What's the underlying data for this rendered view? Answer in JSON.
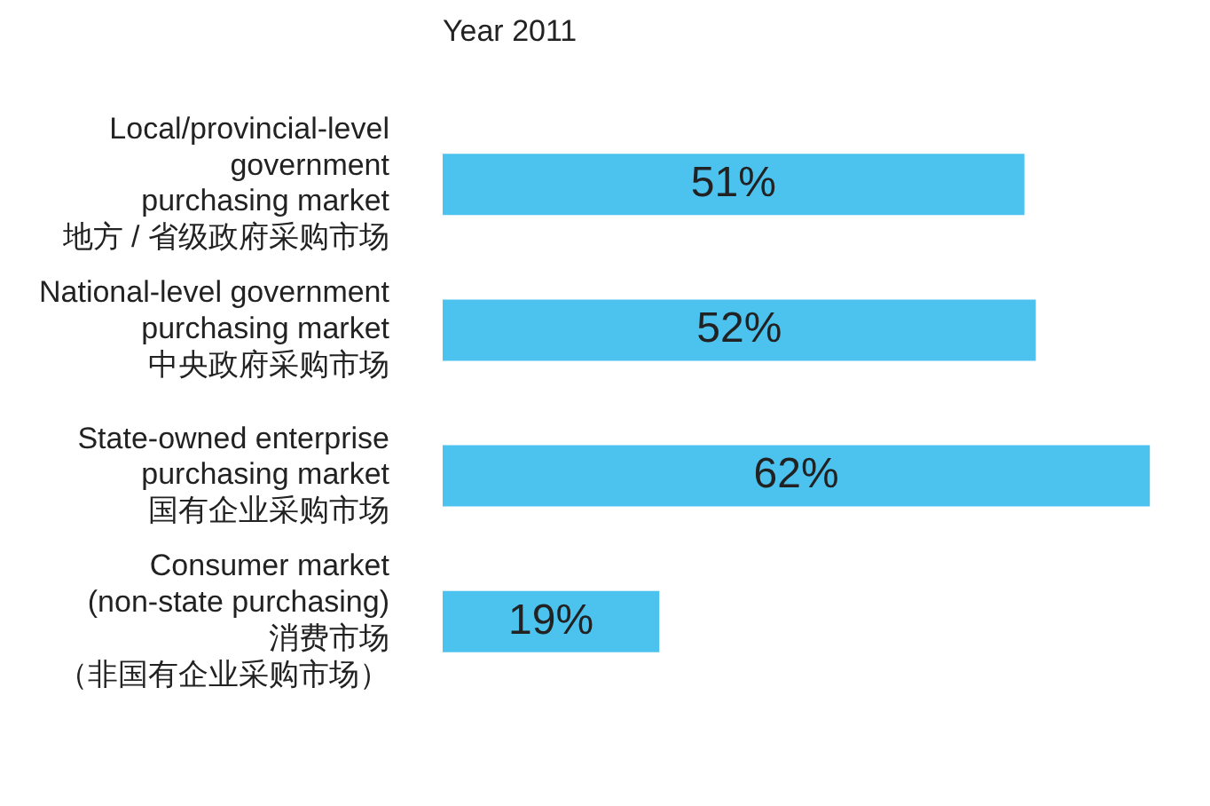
{
  "chart_data": {
    "type": "bar",
    "orientation": "horizontal",
    "title": "Year 2011",
    "categories": [
      "Local/provincial-level\ngovernment\npurchasing market\n地方 / 省级政府采购市场",
      "National-level government\npurchasing market\n中央政府采购市场",
      "State-owned enterprise\npurchasing market\n国有企业采购市场",
      "Consumer market\n(non-state purchasing)\n消费市场（非国有企业采购市场）"
    ],
    "values": [
      51,
      52,
      62,
      19
    ],
    "color": "#4cc3ee",
    "value_labels": [
      "51%",
      "52%",
      "62%",
      "19%"
    ],
    "legend": false
  }
}
